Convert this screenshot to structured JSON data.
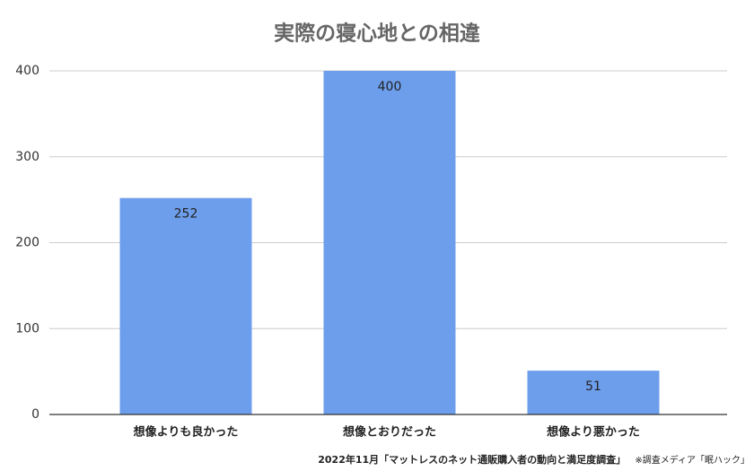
{
  "chart_data": {
    "type": "bar",
    "title": "実際の寝心地との相違",
    "categories": [
      "想像よりも良かった",
      "想像とおりだった",
      "想像より悪かった"
    ],
    "values": [
      252,
      400,
      51
    ],
    "color": "#6d9eeb",
    "ylim": [
      0,
      400
    ],
    "yticks": [
      0,
      100,
      200,
      300,
      400
    ],
    "grid": true,
    "source": "2022年11月「マットレスのネット通販購入者の動向と満足度調査」",
    "note": "※調査メディア「眠ハック」"
  }
}
